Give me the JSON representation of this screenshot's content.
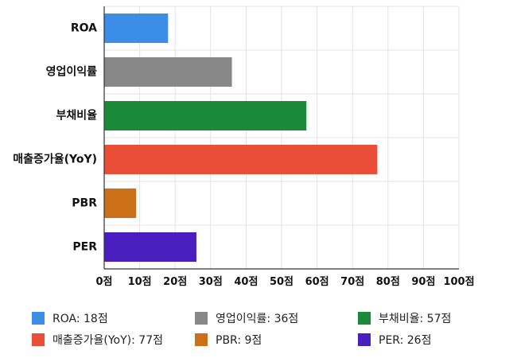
{
  "chart_data": {
    "type": "bar",
    "orientation": "horizontal",
    "categories": [
      "ROA",
      "영업이익률",
      "부채비율",
      "매출증가율(YoY)",
      "PBR",
      "PER"
    ],
    "values": [
      18,
      36,
      57,
      77,
      9,
      26
    ],
    "colors": [
      "#3b8de6",
      "#888888",
      "#1a8a3a",
      "#ea4e36",
      "#cc7018",
      "#4a1fc0"
    ],
    "xlim": [
      0,
      100
    ],
    "xticks": [
      0,
      10,
      20,
      30,
      40,
      50,
      60,
      70,
      80,
      90,
      100
    ],
    "tick_suffix": "점",
    "grid": true,
    "legend_position": "bottom"
  },
  "legend": [
    {
      "text": "ROA: 18점",
      "color": "#3b8de6"
    },
    {
      "text": "영업이익률: 36점",
      "color": "#888888"
    },
    {
      "text": "부채비율: 57점",
      "color": "#1a8a3a"
    },
    {
      "text": "매출증가율(YoY): 77점",
      "color": "#ea4e36"
    },
    {
      "text": "PBR: 9점",
      "color": "#cc7018"
    },
    {
      "text": "PER: 26점",
      "color": "#4a1fc0"
    }
  ]
}
